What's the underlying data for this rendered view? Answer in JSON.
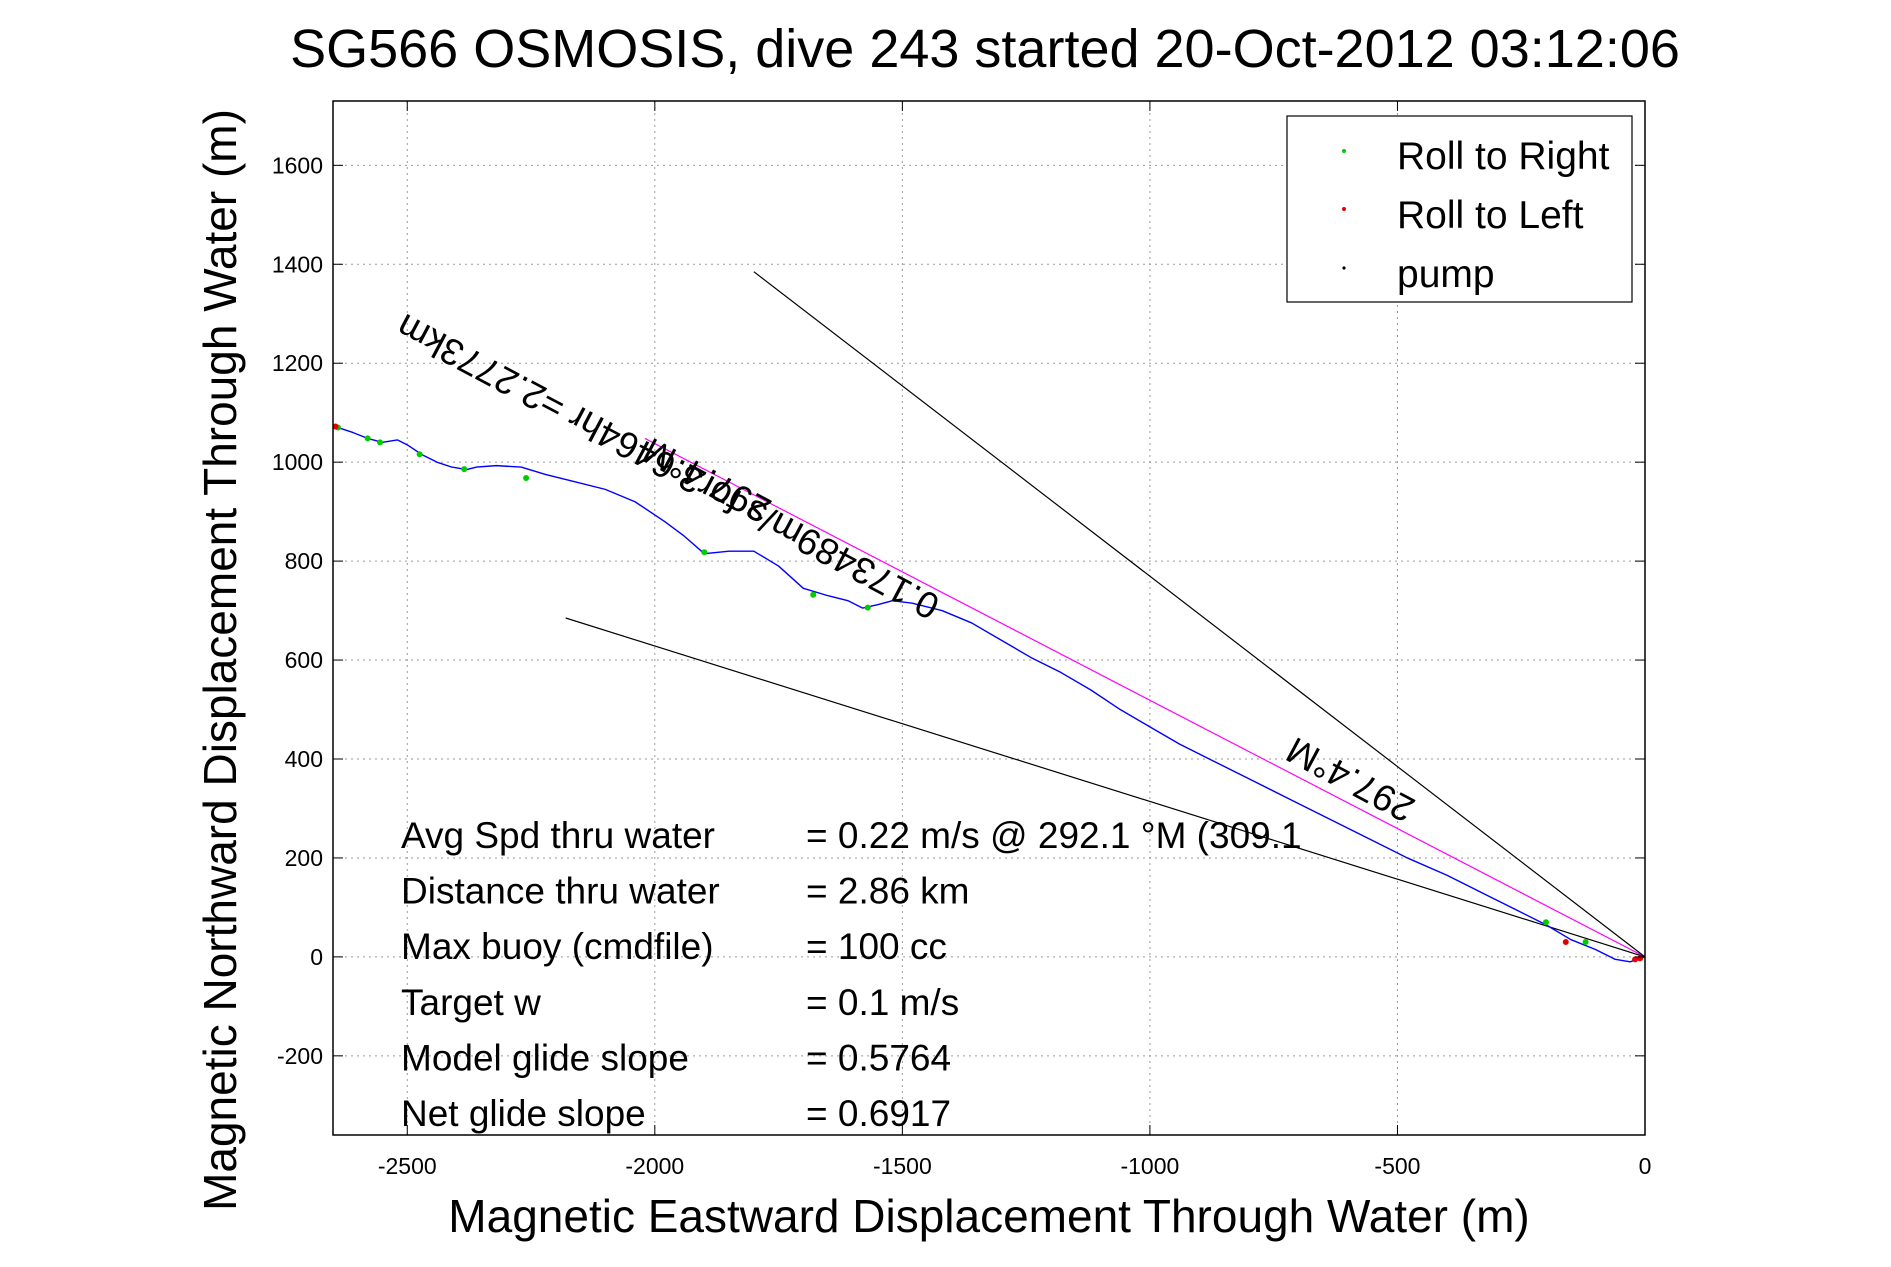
{
  "chart_data": {
    "type": "line",
    "title": "SG566 OSMOSIS, dive 243 started 20-Oct-2012 03:12:06",
    "xlabel": "Magnetic Eastward Displacement Through Water (m)",
    "ylabel": "Magnetic Northward Displacement Through Water (m)",
    "xlim": [
      -2650,
      0
    ],
    "ylim": [
      -360,
      1730
    ],
    "xticks": [
      -2500,
      -2000,
      -1500,
      -1000,
      -500,
      0
    ],
    "yticks": [
      -200,
      0,
      200,
      400,
      600,
      800,
      1000,
      1200,
      1400,
      1600
    ],
    "grid": true,
    "legend_position": "top-right",
    "legend": [
      {
        "label": "Roll to Right",
        "color": "#00cc00"
      },
      {
        "label": "Roll to Left",
        "color": "#e00000"
      },
      {
        "label": "pump",
        "color": "#000000"
      }
    ],
    "track": {
      "color": "#0000ff",
      "x": [
        0,
        -30,
        -60,
        -100,
        -150,
        -200,
        -260,
        -330,
        -400,
        -480,
        -560,
        -640,
        -720,
        -800,
        -870,
        -940,
        -1000,
        -1060,
        -1120,
        -1180,
        -1240,
        -1300,
        -1360,
        -1420,
        -1480,
        -1520,
        -1550,
        -1580,
        -1610,
        -1650,
        -1700,
        -1750,
        -1800,
        -1850,
        -1900,
        -1940,
        -1980,
        -2040,
        -2100,
        -2160,
        -2220,
        -2270,
        -2320,
        -2360,
        -2380,
        -2410,
        -2440,
        -2470,
        -2500,
        -2520,
        -2550,
        -2580,
        -2610,
        -2640
      ],
      "y": [
        0,
        -10,
        -5,
        15,
        35,
        65,
        95,
        130,
        165,
        200,
        240,
        280,
        320,
        360,
        395,
        430,
        465,
        500,
        540,
        575,
        605,
        640,
        675,
        700,
        715,
        720,
        712,
        705,
        720,
        730,
        745,
        790,
        820,
        820,
        815,
        850,
        880,
        920,
        945,
        960,
        975,
        990,
        993,
        990,
        985,
        990,
        1000,
        1015,
        1035,
        1045,
        1040,
        1048,
        1060,
        1070
      ]
    },
    "roll_right_points": [
      [
        -2640,
        1070
      ],
      [
        -2580,
        1048
      ],
      [
        -2555,
        1040
      ],
      [
        -2475,
        1016
      ],
      [
        -2385,
        986
      ],
      [
        -2260,
        968
      ],
      [
        -1900,
        818
      ],
      [
        -1680,
        732
      ],
      [
        -1570,
        706
      ],
      [
        -200,
        70
      ],
      [
        -120,
        30
      ]
    ],
    "roll_left_points": [
      [
        -2645,
        1072
      ],
      [
        -160,
        30
      ],
      [
        -20,
        -5
      ],
      [
        -10,
        -3
      ]
    ],
    "heading_lines": [
      {
        "color": "#ff00ff",
        "x": [
          -2020,
          0
        ],
        "y": [
          1048,
          0
        ]
      },
      {
        "color": "#000000",
        "x": [
          -1800,
          0
        ],
        "y": [
          1385,
          0
        ]
      },
      {
        "color": "#000000",
        "x": [
          -2180,
          0
        ],
        "y": [
          685,
          0
        ]
      }
    ],
    "annotations": [
      {
        "text": "297.4°M",
        "x": -1760,
        "y": 920,
        "angle_deg": 208
      },
      {
        "text": "0.173489m/s for3.6464hr =2.2773km",
        "x": -1420,
        "y": 725,
        "angle_deg": 208
      },
      {
        "text": "297.4°M",
        "x": -460,
        "y": 315,
        "angle_deg": 208
      }
    ],
    "stats": [
      {
        "label": "Avg Spd thru water",
        "value": "=  0.22 m/s @ 292.1 °M (309.1"
      },
      {
        "label": "Distance thru water",
        "value": "=  2.86 km"
      },
      {
        "label": "Max buoy (cmdfile)",
        "value": "= 100 cc"
      },
      {
        "label": "Target w",
        "value": "= 0.1 m/s"
      },
      {
        "label": "Model glide slope",
        "value": "= 0.5764"
      },
      {
        "label": "Net glide slope",
        "value": "= 0.6917"
      }
    ]
  }
}
